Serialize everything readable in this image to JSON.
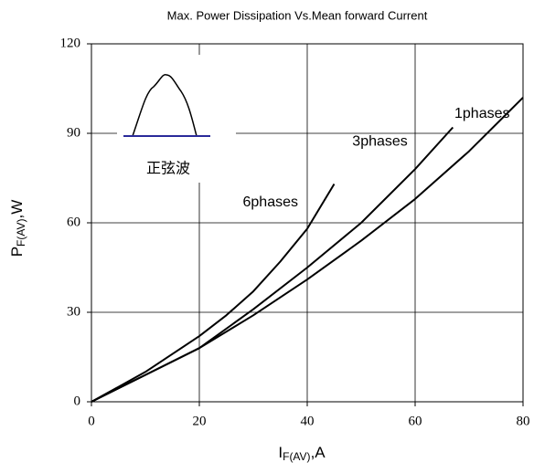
{
  "chart_data": {
    "type": "line",
    "title": "Max. Power Dissipation Vs.Mean forward Current",
    "xlabel": [
      "I",
      "F(AV)",
      ",A"
    ],
    "ylabel": [
      "P",
      "F(AV)",
      ",W"
    ],
    "annotation": "正弦波",
    "series": [
      {
        "name": "6phases",
        "color": "#000000",
        "x": [
          0,
          5,
          10,
          15,
          20,
          25,
          30,
          35,
          40,
          45
        ],
        "values": [
          0,
          5,
          10,
          16,
          22,
          29,
          37,
          47,
          58,
          73
        ]
      },
      {
        "name": "3phases",
        "color": "#000000",
        "x": [
          0,
          10,
          20,
          30,
          40,
          50,
          60,
          67
        ],
        "values": [
          0,
          9,
          18,
          31,
          45,
          60,
          78,
          92
        ]
      },
      {
        "name": "1phases",
        "color": "#000000",
        "x": [
          0,
          10,
          20,
          30,
          40,
          50,
          60,
          70,
          80
        ],
        "values": [
          0,
          9,
          18,
          29,
          41,
          54,
          68,
          84,
          102
        ]
      }
    ],
    "xlim": [
      0,
      80
    ],
    "xticks": [
      0,
      20,
      40,
      60,
      80
    ],
    "ylim": [
      0,
      120
    ],
    "yticks": [
      0,
      30,
      60,
      90,
      120
    ],
    "grid": true
  }
}
